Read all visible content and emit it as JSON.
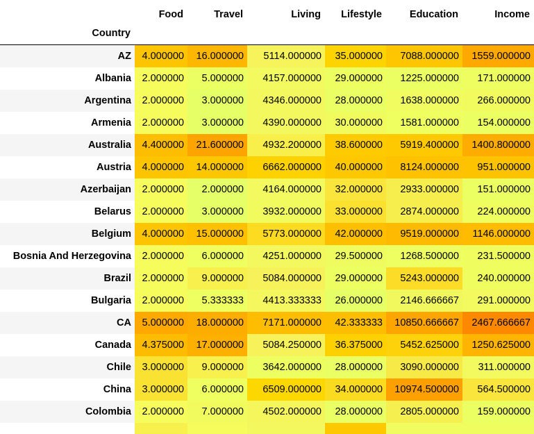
{
  "table": {
    "index_name": "Country",
    "columns": [
      "Food",
      "Travel",
      "Living",
      "Lifestyle",
      "Education",
      "Income"
    ],
    "rows": [
      {
        "country": "AZ",
        "values": [
          "4.000000",
          "16.000000",
          "5114.000000",
          "35.000000",
          "7088.000000",
          "1559.000000"
        ],
        "colors": [
          "#fdc400",
          "#fdb700",
          "#f7f35a",
          "#fdd300",
          "#fec600",
          "#fea800"
        ]
      },
      {
        "country": "Albania",
        "values": [
          "2.000000",
          "5.000000",
          "4157.000000",
          "29.000000",
          "1225.000000",
          "171.000000"
        ],
        "colors": [
          "#f5fc5c",
          "#ecff62",
          "#f2fa5f",
          "#edfe60",
          "#ecff62",
          "#eefe60"
        ]
      },
      {
        "country": "Argentina",
        "values": [
          "2.000000",
          "3.000000",
          "4346.000000",
          "28.000000",
          "1638.000000",
          "266.000000"
        ],
        "colors": [
          "#f5fc5c",
          "#e6ff66",
          "#f3f85e",
          "#eaff63",
          "#f0fc5f",
          "#f1fb5e"
        ]
      },
      {
        "country": "Armenia",
        "values": [
          "2.000000",
          "3.000000",
          "4390.000000",
          "30.000000",
          "1581.000000",
          "154.000000"
        ],
        "colors": [
          "#f5fc5c",
          "#e6ff66",
          "#f3f85e",
          "#f1fb5e",
          "#efff5f",
          "#ecff62"
        ]
      },
      {
        "country": "Australia",
        "values": [
          "4.400000",
          "21.600000",
          "4932.200000",
          "38.600000",
          "5919.400000",
          "1400.800000"
        ],
        "colors": [
          "#fdbd00",
          "#fda400",
          "#f9ef4a",
          "#fecb00",
          "#fec900",
          "#fead00"
        ]
      },
      {
        "country": "Austria",
        "values": [
          "4.000000",
          "14.000000",
          "6662.000000",
          "40.000000",
          "8124.000000",
          "951.000000"
        ],
        "colors": [
          "#fdc400",
          "#fdc700",
          "#fdd200",
          "#fdc800",
          "#fec200",
          "#fec300"
        ]
      },
      {
        "country": "Azerbaijan",
        "values": [
          "2.000000",
          "2.000000",
          "4164.000000",
          "32.000000",
          "2933.000000",
          "151.000000"
        ],
        "colors": [
          "#f5fc5c",
          "#e4ff68",
          "#f2fa5f",
          "#f9e53c",
          "#f6ee4c",
          "#ecff62"
        ]
      },
      {
        "country": "Belarus",
        "values": [
          "2.000000",
          "3.000000",
          "3932.000000",
          "33.000000",
          "2874.000000",
          "224.000000"
        ],
        "colors": [
          "#f5fc5c",
          "#e6ff66",
          "#f1fb5e",
          "#fbe030",
          "#f6ee4c",
          "#f0fd5f"
        ]
      },
      {
        "country": "Belgium",
        "values": [
          "4.000000",
          "15.000000",
          "5773.000000",
          "42.000000",
          "9519.000000",
          "1146.000000"
        ],
        "colors": [
          "#fdc400",
          "#fec000",
          "#fddb21",
          "#fdbf00",
          "#feba00",
          "#febb00"
        ]
      },
      {
        "country": "Bosnia And Herzegovina",
        "values": [
          "2.000000",
          "6.000000",
          "4251.000000",
          "29.500000",
          "1268.500000",
          "231.500000"
        ],
        "colors": [
          "#f5fc5c",
          "#efff60",
          "#f3f85e",
          "#eefc60",
          "#edff61",
          "#f0fd5f"
        ]
      },
      {
        "country": "Brazil",
        "values": [
          "2.000000",
          "9.000000",
          "5084.000000",
          "29.000000",
          "5243.000000",
          "240.000000"
        ],
        "colors": [
          "#f5fc5c",
          "#f7f04d",
          "#f7f25a",
          "#edfe60",
          "#fddc28",
          "#f0fd5f"
        ]
      },
      {
        "country": "Bulgaria",
        "values": [
          "2.000000",
          "5.333333",
          "4413.333333",
          "26.000000",
          "2146.666667",
          "291.000000"
        ],
        "colors": [
          "#f5fc5c",
          "#edff61",
          "#f4f75d",
          "#e6ff66",
          "#f1f85d",
          "#f2fa5f"
        ]
      },
      {
        "country": "CA",
        "values": [
          "5.000000",
          "18.000000",
          "7171.000000",
          "42.333333",
          "10850.666667",
          "2467.666667"
        ],
        "colors": [
          "#fea800",
          "#fdac00",
          "#febd00",
          "#fdbd00",
          "#fea500",
          "#fe8800"
        ]
      },
      {
        "country": "Canada",
        "values": [
          "4.375000",
          "17.000000",
          "5084.250000",
          "36.375000",
          "5452.625000",
          "1250.625000"
        ],
        "colors": [
          "#fdbc00",
          "#fdb000",
          "#f7f25a",
          "#fdd000",
          "#fdd20a",
          "#feb400"
        ]
      },
      {
        "country": "Chile",
        "values": [
          "3.000000",
          "9.000000",
          "3642.000000",
          "28.000000",
          "3090.000000",
          "311.000000"
        ],
        "colors": [
          "#fae232",
          "#f7f04d",
          "#edfe60",
          "#eaff63",
          "#f7ea46",
          "#f2fa5f"
        ]
      },
      {
        "country": "China",
        "values": [
          "3.000000",
          "6.000000",
          "6509.000000",
          "34.000000",
          "10974.500000",
          "564.500000"
        ],
        "colors": [
          "#fae232",
          "#efff60",
          "#fdd700",
          "#fbdb1f",
          "#fea100",
          "#f9e53c"
        ]
      },
      {
        "country": "Colombia",
        "values": [
          "2.000000",
          "7.000000",
          "4502.000000",
          "28.000000",
          "2805.000000",
          "159.000000"
        ],
        "colors": [
          "#f5fc5c",
          "#f2fb5e",
          "#f5f65c",
          "#eaff63",
          "#f5f04f",
          "#ecff62"
        ]
      },
      {
        "country": "",
        "values": [
          "",
          "",
          "",
          "",
          "",
          ""
        ],
        "colors": [
          "#f7f04d",
          "#f5fc5c",
          "#f3f85e",
          "#fdc800",
          "#f0fc5f",
          "#f0fd5f"
        ]
      }
    ]
  }
}
